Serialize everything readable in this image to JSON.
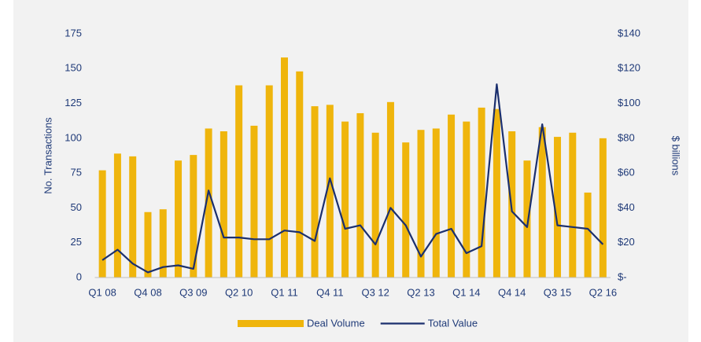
{
  "chart_data": {
    "type": "bar",
    "categories": [
      "Q1 08",
      null,
      null,
      "Q4 08",
      null,
      null,
      "Q3 09",
      null,
      null,
      "Q2 10",
      null,
      null,
      "Q1 11",
      null,
      null,
      "Q4 11",
      null,
      null,
      "Q3 12",
      null,
      null,
      "Q2 13",
      null,
      null,
      "Q1 14",
      null,
      null,
      "Q4 14",
      null,
      null,
      "Q3 15",
      null,
      null,
      "Q2 16"
    ],
    "series": [
      {
        "name": "Deal Volume",
        "type": "bar",
        "color": "#efb50c",
        "values": [
          77,
          89,
          87,
          47,
          49,
          84,
          88,
          107,
          105,
          138,
          109,
          138,
          158,
          148,
          123,
          124,
          112,
          118,
          104,
          126,
          97,
          106,
          107,
          117,
          112,
          122,
          121,
          105,
          84,
          108,
          101,
          104,
          61,
          100
        ]
      },
      {
        "name": "Total Value",
        "type": "line",
        "axis": "y2",
        "color": "#1b2f6e",
        "values": [
          10,
          16,
          8,
          3,
          6,
          7,
          5,
          50,
          23,
          23,
          22,
          22,
          27,
          26,
          21,
          57,
          28,
          30,
          19,
          40,
          30,
          12,
          25,
          28,
          14,
          18,
          111,
          38,
          29,
          88,
          30,
          29,
          28,
          19
        ]
      }
    ],
    "ylabel": "No. Transactions",
    "y2label": "$ billions",
    "ylim": [
      0,
      175
    ],
    "yticks": [
      0,
      25,
      50,
      75,
      100,
      125,
      150,
      175
    ],
    "y2lim": [
      0,
      140
    ],
    "y2ticks": [
      {
        "value": 0,
        "label": "$-"
      },
      {
        "value": 20,
        "label": "$20"
      },
      {
        "value": 40,
        "label": "$40"
      },
      {
        "value": 60,
        "label": "$60"
      },
      {
        "value": 80,
        "label": "$80"
      },
      {
        "value": 100,
        "label": "$100"
      },
      {
        "value": 120,
        "label": "$120"
      },
      {
        "value": 140,
        "label": "$140"
      }
    ],
    "grid": false,
    "legend": "bottom"
  }
}
